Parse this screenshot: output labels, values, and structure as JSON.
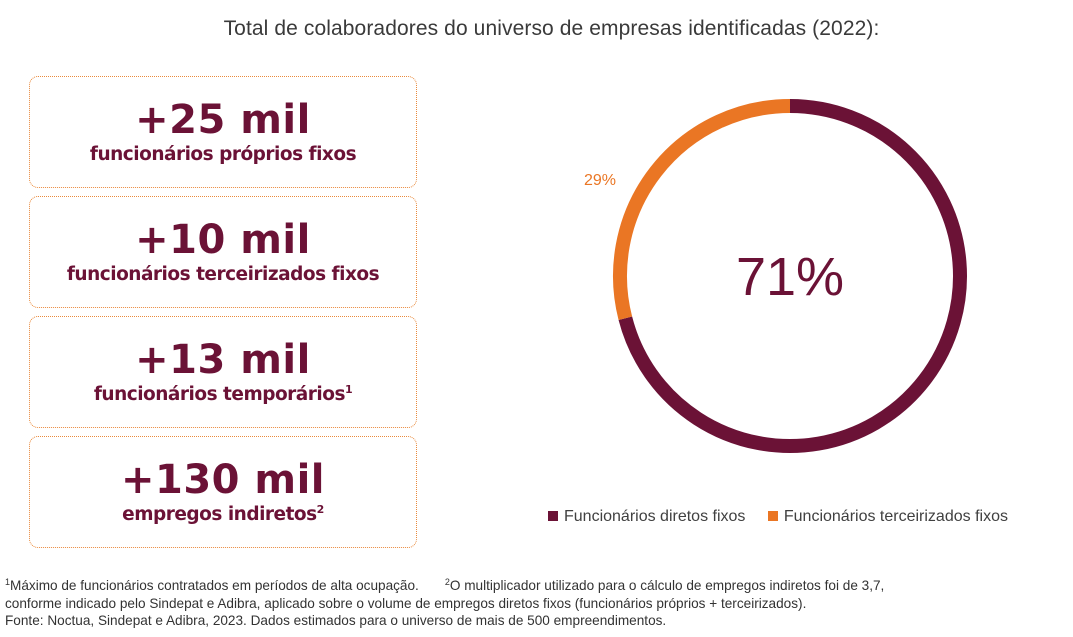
{
  "title": "Total de colaboradores do universo de empresas identificadas (2022):",
  "cards": [
    {
      "value": "+25 mil",
      "label": "funcionários próprios fixos",
      "note": ""
    },
    {
      "value": "+10 mil",
      "label": "funcionários terceirizados fixos",
      "note": ""
    },
    {
      "value": "+13 mil",
      "label": "funcionários temporários",
      "note": "1"
    },
    {
      "value": "+130 mil",
      "label": "empregos indiretos",
      "note": "2"
    }
  ],
  "chart_data": {
    "type": "pie",
    "variant": "donut",
    "title": "",
    "center_label": "71%",
    "slices": [
      {
        "name": "Funcionários diretos fixos",
        "value": 71,
        "label": "71%",
        "color": "#6b1236"
      },
      {
        "name": "Funcionários terceirizados fixos",
        "value": 29,
        "label": "29%",
        "color": "#ea7624"
      }
    ],
    "legend": "bottom"
  },
  "footnotes": {
    "note1_marker": "1",
    "note1_text": "Máximo de funcionários contratados  em períodos de alta ocupação.",
    "note2_marker": "2",
    "note2_text": "O multiplicador utilizado para o cálculo de empregos indiretos foi de 3,7,",
    "line2": "conforme indicado pelo Sindepat e Adibra, aplicado sobre o volume de empregos diretos fixos (funcionários próprios + terceirizados).",
    "line3": "Fonte: Noctua, Sindepat e Adibra, 2023. Dados estimados para o universo de mais de 500 empreendimentos."
  }
}
